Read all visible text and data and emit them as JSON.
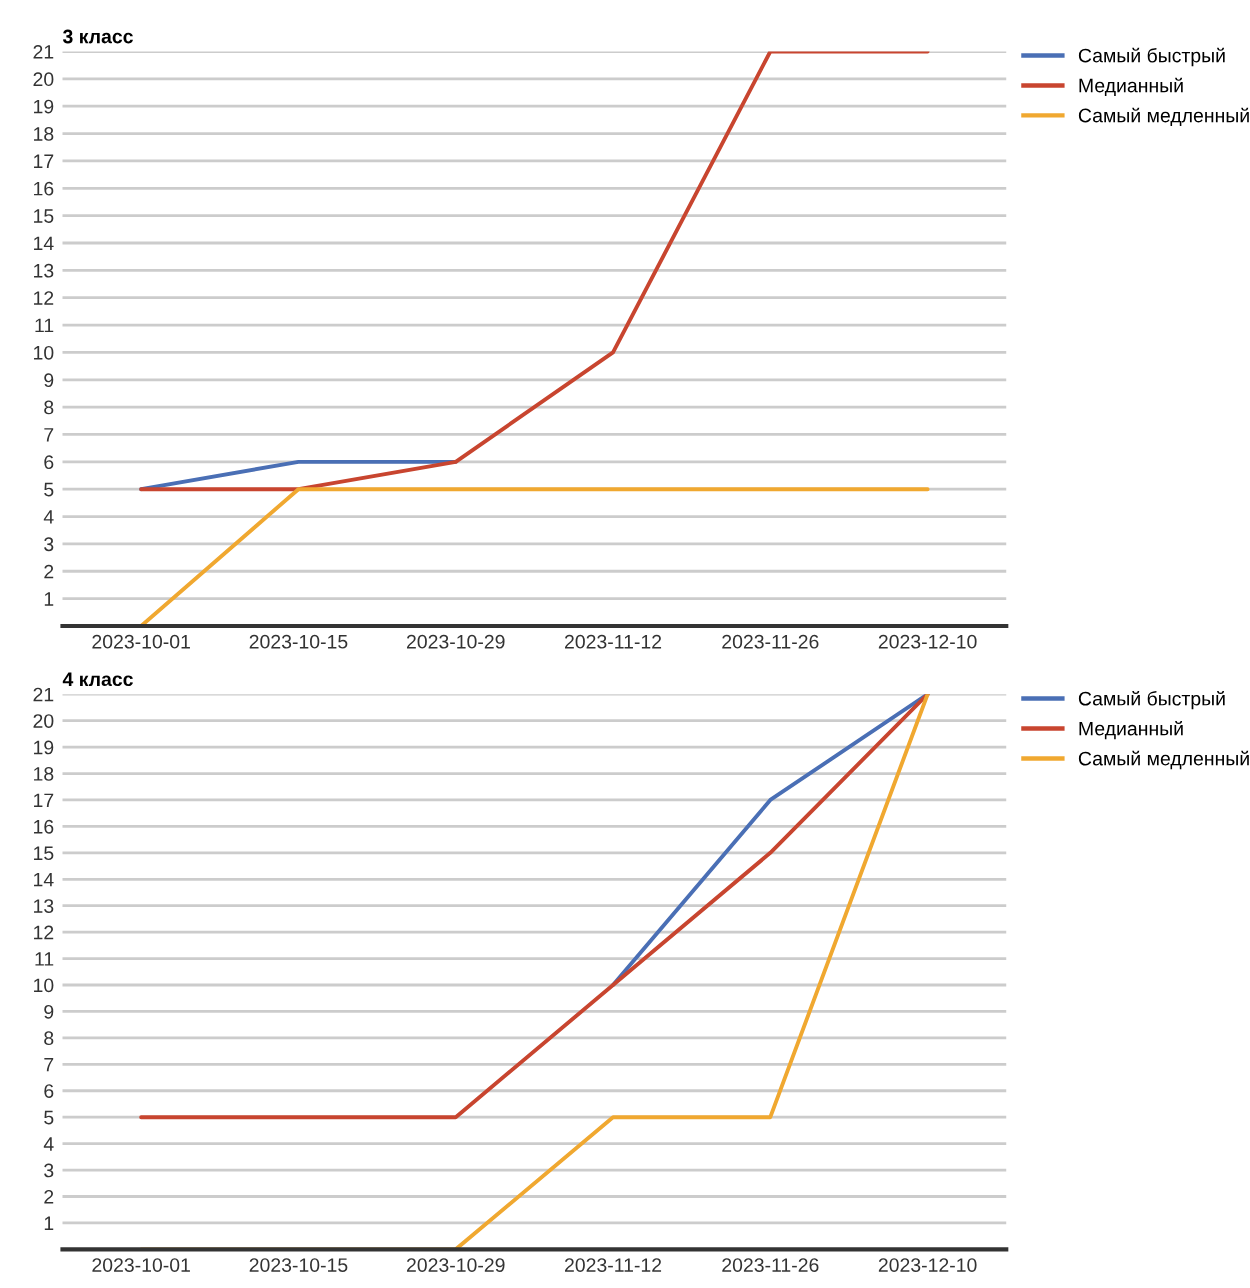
{
  "chart_data": [
    {
      "type": "line",
      "title": "3 класс",
      "categories": [
        "2023-10-01",
        "2023-10-15",
        "2023-10-29",
        "2023-11-12",
        "2023-11-26",
        "2023-12-10"
      ],
      "series": [
        {
          "name": "Самый быстрый",
          "color": "#4a6fb5",
          "values": [
            5,
            6,
            6,
            null,
            null,
            null
          ]
        },
        {
          "name": "Медианный",
          "color": "#c8452f",
          "values": [
            5,
            5,
            6,
            10,
            21,
            21
          ]
        },
        {
          "name": "Самый медленный",
          "color": "#f0a830",
          "values": [
            0,
            5,
            5,
            5,
            5,
            5
          ]
        }
      ],
      "ylim": [
        0,
        21
      ],
      "yticks": [
        {
          "value": 0,
          "label": null
        },
        1,
        2,
        3,
        4,
        5,
        6,
        7,
        8,
        9,
        10,
        11,
        12,
        13,
        14,
        15,
        16,
        17,
        18,
        19,
        20,
        21
      ],
      "grid": "y",
      "legend": "top right"
    },
    {
      "type": "line",
      "title": "4 класс",
      "categories": [
        "2023-10-01",
        "2023-10-15",
        "2023-10-29",
        "2023-11-12",
        "2023-11-26",
        "2023-12-10"
      ],
      "series": [
        {
          "name": "Самый быстрый",
          "color": "#4a6fb5",
          "values": [
            null,
            null,
            null,
            10,
            17,
            21
          ]
        },
        {
          "name": "Медианный",
          "color": "#c8452f",
          "values": [
            5,
            5,
            5,
            10,
            15,
            21
          ]
        },
        {
          "name": "Самый медленный",
          "color": "#f0a830",
          "values": [
            0,
            0,
            0,
            5,
            5,
            21
          ]
        }
      ],
      "ylim": [
        0,
        21
      ],
      "yticks": [
        {
          "value": 0,
          "label": null
        },
        1,
        2,
        3,
        4,
        5,
        6,
        7,
        8,
        9,
        10,
        11,
        12,
        13,
        14,
        15,
        16,
        17,
        18,
        19,
        20,
        21
      ],
      "grid": "y",
      "legend": "top right"
    }
  ]
}
